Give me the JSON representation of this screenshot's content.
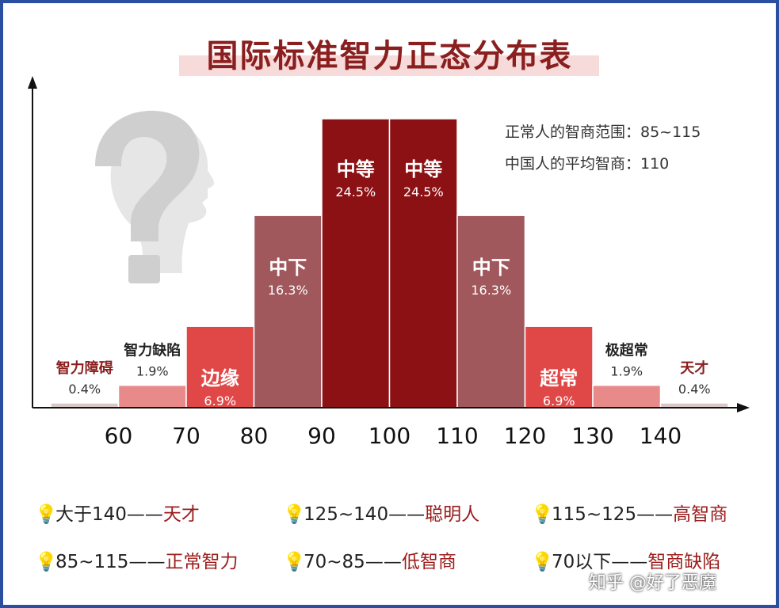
{
  "title": "国际标准智力正态分布表",
  "notes": [
    "正常人的智商范围：85~115",
    "中国人的平均智商：110"
  ],
  "chart_data": {
    "type": "bar",
    "x_ticks": [
      60,
      70,
      80,
      90,
      100,
      110,
      120,
      130,
      140
    ],
    "bars": [
      {
        "label": "智力障碍",
        "value": 0.4,
        "value_text": "0.4%",
        "from": 50,
        "to": 60,
        "color": "#d7c7c7",
        "label_color": "#8b1e1e"
      },
      {
        "label": "智力缺陷",
        "value": 1.9,
        "value_text": "1.9%",
        "from": 60,
        "to": 70,
        "color": "#e98a8a",
        "label_color": "#222222"
      },
      {
        "label": "边缘",
        "value": 6.9,
        "value_text": "6.9%",
        "from": 70,
        "to": 80,
        "color": "#e04848",
        "label_color": "#ffffff"
      },
      {
        "label": "中下",
        "value": 16.3,
        "value_text": "16.3%",
        "from": 80,
        "to": 90,
        "color": "#a0585d",
        "label_color": "#ffffff"
      },
      {
        "label": "中等",
        "value": 24.5,
        "value_text": "24.5%",
        "from": 90,
        "to": 100,
        "color": "#8b1114",
        "label_color": "#ffffff"
      },
      {
        "label": "中等",
        "value": 24.5,
        "value_text": "24.5%",
        "from": 100,
        "to": 110,
        "color": "#8b1114",
        "label_color": "#ffffff"
      },
      {
        "label": "中下",
        "value": 16.3,
        "value_text": "16.3%",
        "from": 110,
        "to": 120,
        "color": "#a0585d",
        "label_color": "#ffffff"
      },
      {
        "label": "超常",
        "value": 6.9,
        "value_text": "6.9%",
        "from": 120,
        "to": 130,
        "color": "#e04848",
        "label_color": "#ffffff"
      },
      {
        "label": "极超常",
        "value": 1.9,
        "value_text": "1.9%",
        "from": 130,
        "to": 140,
        "color": "#e98a8a",
        "label_color": "#222222"
      },
      {
        "label": "天才",
        "value": 0.4,
        "value_text": "0.4%",
        "from": 140,
        "to": 150,
        "color": "#d7c7c7",
        "label_color": "#8b1e1e"
      }
    ],
    "xlim": [
      50,
      150
    ],
    "ylim": [
      0,
      24.5
    ],
    "grid": false
  },
  "legend": [
    {
      "range": "大于140",
      "dash": "——",
      "label": "天才"
    },
    {
      "range": "125~140",
      "dash": "——",
      "label": "聪明人"
    },
    {
      "range": "115~125",
      "dash": "——",
      "label": "高智商"
    },
    {
      "range": "85~115",
      "dash": "——",
      "label": "正常智力"
    },
    {
      "range": "70~85",
      "dash": "——",
      "label": "低智商"
    },
    {
      "range": "70以下",
      "dash": "——",
      "label": "智商缺陷"
    }
  ],
  "icons": {
    "legend_icon": "lightbulb-icon",
    "decor_icon": "question-head-icon"
  },
  "watermark": "知乎 @好了恶魔"
}
